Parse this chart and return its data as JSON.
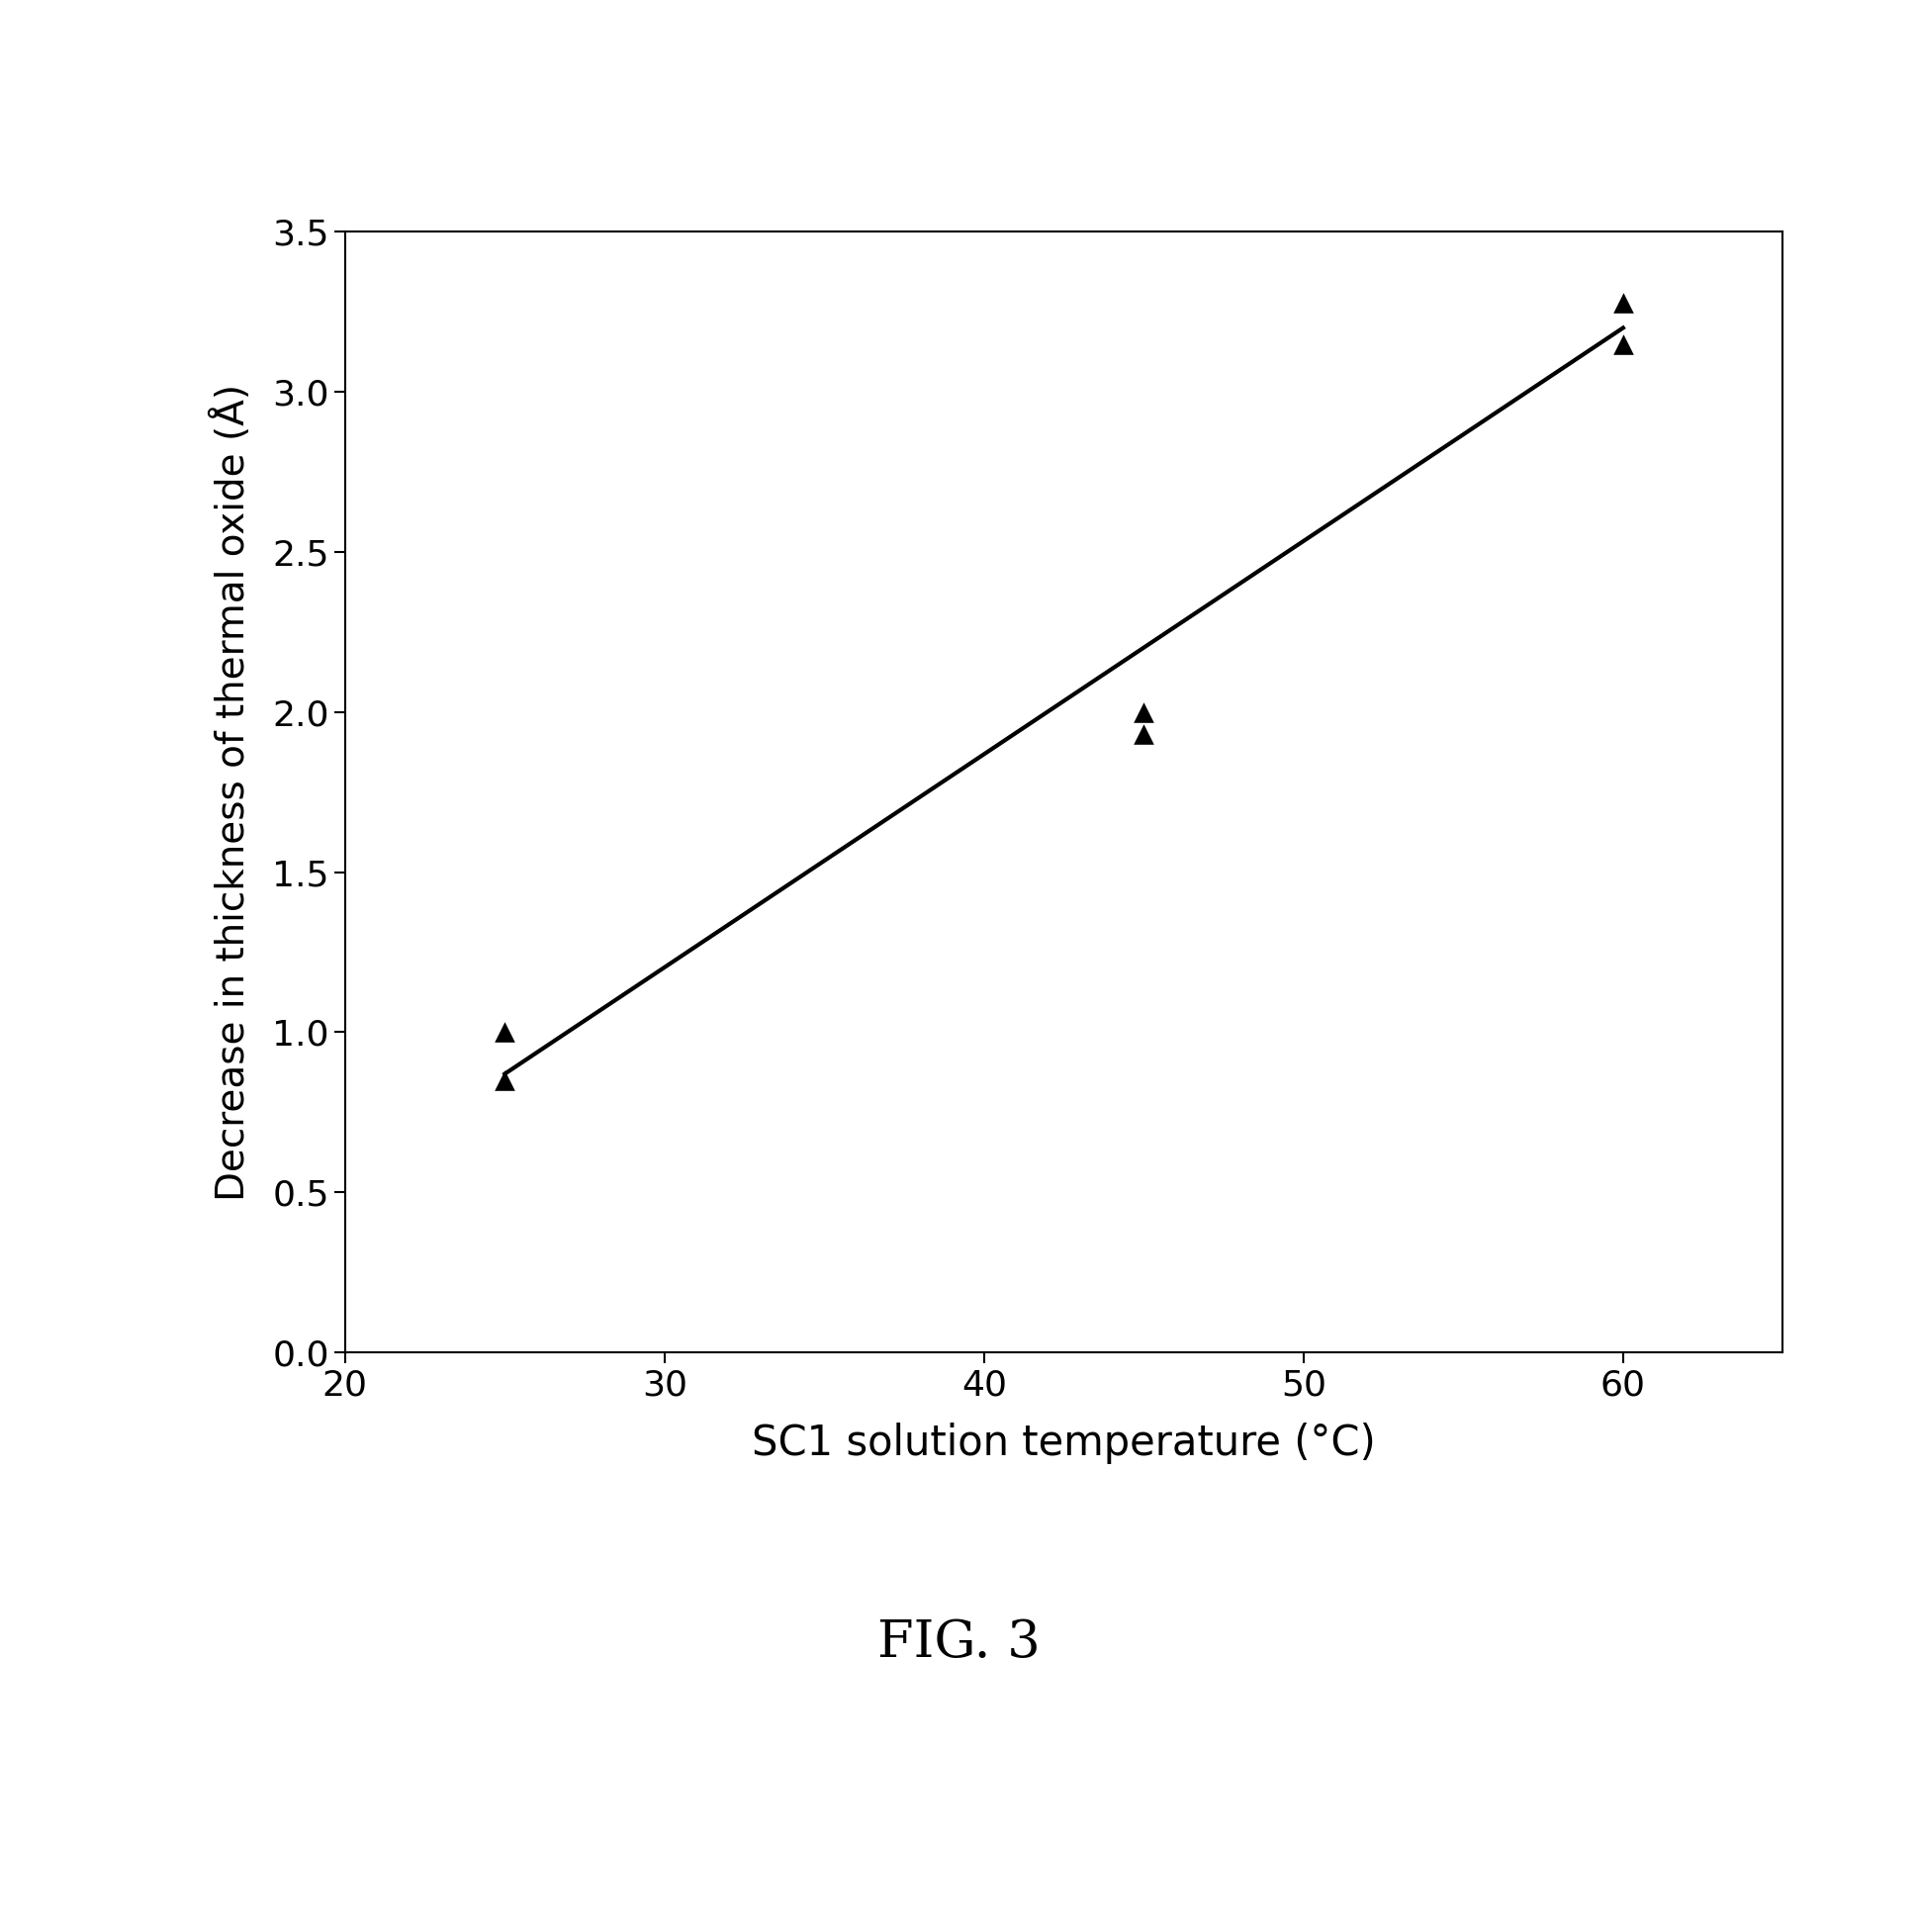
{
  "x_data": [
    25,
    25,
    45,
    45,
    60,
    60
  ],
  "y_data": [
    1.0,
    0.85,
    2.0,
    1.93,
    3.28,
    3.15
  ],
  "trendline_x": [
    25,
    60
  ],
  "trendline_y": [
    0.87,
    3.2
  ],
  "xlabel": "SC1 solution temperature (°C)",
  "ylabel": "Decrease in thickness of thermal oxide (Å)",
  "caption": "FIG. 3",
  "xlim": [
    20,
    65
  ],
  "ylim": [
    0,
    3.5
  ],
  "xticks": [
    20,
    30,
    40,
    50,
    60
  ],
  "yticks": [
    0,
    0.5,
    1.0,
    1.5,
    2.0,
    2.5,
    3.0,
    3.5
  ],
  "marker_color": "#000000",
  "line_color": "#000000",
  "background_color": "#ffffff",
  "marker_size": 220,
  "line_width": 3.0,
  "xlabel_fontsize": 30,
  "ylabel_fontsize": 28,
  "tick_fontsize": 26,
  "caption_fontsize": 38
}
